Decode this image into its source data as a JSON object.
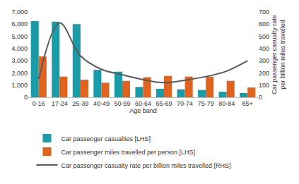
{
  "chart_data": {
    "type": "bar",
    "x_label": "Age band",
    "y2_label": "Car passenger casualty rate per billion miles travelled",
    "categories": [
      "0-16",
      "17-24",
      "25-39",
      "40-49",
      "50-59",
      "60-64",
      "65-69",
      "70-74",
      "75-79",
      "80-84",
      "85+"
    ],
    "series": [
      {
        "name": "Car passenger casualties [LHS]",
        "type": "bar",
        "color": "#1a9ba8",
        "values": [
          6250,
          6200,
          6000,
          2250,
          2100,
          850,
          700,
          650,
          600,
          450,
          350
        ]
      },
      {
        "name": "Car passenger miles travelled per person [LHS]",
        "type": "bar",
        "color": "#e0631e",
        "values": [
          3350,
          1700,
          1450,
          1200,
          1350,
          1650,
          1750,
          1700,
          1700,
          1350,
          800
        ]
      },
      {
        "name": "Car passenger casualty rate per billion miles travelled [RHS]",
        "type": "line",
        "color": "#595959",
        "axis": "y2",
        "values": [
          150,
          610,
          340,
          230,
          185,
          145,
          120,
          140,
          170,
          215,
          300
        ]
      }
    ],
    "ylim": [
      0,
      7000
    ],
    "yticks": [
      0,
      {
        "value": 1000,
        "label": "1,000"
      },
      {
        "value": 2000,
        "label": "2,000"
      },
      {
        "value": 3000,
        "label": "3,000"
      },
      {
        "value": 4000,
        "label": "4,000"
      },
      {
        "value": 5000,
        "label": "5,000"
      },
      {
        "value": 6000,
        "label": "6,000"
      },
      {
        "value": 7000,
        "label": "7,000"
      }
    ],
    "y2lim": [
      0,
      700
    ],
    "y2ticks": [
      0,
      100,
      200,
      300,
      400,
      500,
      600,
      700
    ],
    "grid": false,
    "legend": "bottom"
  }
}
